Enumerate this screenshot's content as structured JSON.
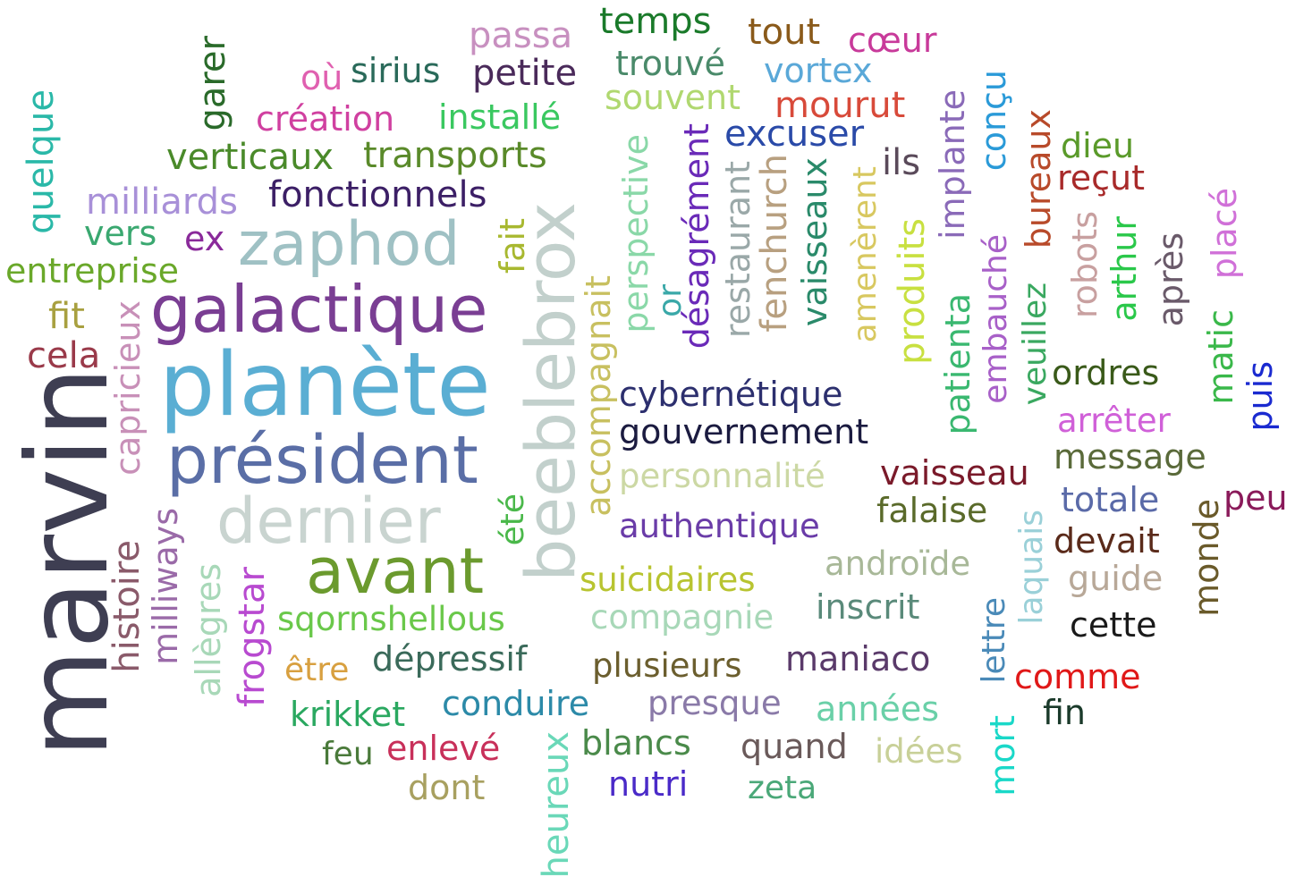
{
  "words": [
    {
      "text": "marvin",
      "color": "#3e3e52"
    },
    {
      "text": "planète",
      "color": "#5aaed3"
    },
    {
      "text": "beeblebrox",
      "color": "#c2d0cc"
    },
    {
      "text": "président",
      "color": "#5a6ea6"
    },
    {
      "text": "galactique",
      "color": "#7a3e93"
    },
    {
      "text": "dernier",
      "color": "#c9d4d0"
    },
    {
      "text": "avant",
      "color": "#6b9a2e"
    },
    {
      "text": "zaphod",
      "color": "#9fc1c4"
    },
    {
      "text": "fonctionnels",
      "color": "#3c1f66"
    },
    {
      "text": "cybernétique",
      "color": "#2c2f6e"
    },
    {
      "text": "gouvernement",
      "color": "#1b1b40"
    },
    {
      "text": "personnalité",
      "color": "#ccd8a4"
    },
    {
      "text": "authentique",
      "color": "#6a3ca8"
    },
    {
      "text": "suicidaires",
      "color": "#b8c430"
    },
    {
      "text": "compagnie",
      "color": "#a8d8b8"
    },
    {
      "text": "plusieurs",
      "color": "#6b5e2e"
    },
    {
      "text": "presque",
      "color": "#8a7aa8"
    },
    {
      "text": "sqornshellous",
      "color": "#6ac84a"
    },
    {
      "text": "dépressif",
      "color": "#3a6a5a"
    },
    {
      "text": "conduire",
      "color": "#2c8aa8"
    },
    {
      "text": "krikket",
      "color": "#2aa860"
    },
    {
      "text": "être",
      "color": "#d8a040"
    },
    {
      "text": "feu",
      "color": "#4a7a3a"
    },
    {
      "text": "enlevé",
      "color": "#c8305a"
    },
    {
      "text": "dont",
      "color": "#a8a060"
    },
    {
      "text": "blancs",
      "color": "#4a8a4a"
    },
    {
      "text": "nutri",
      "color": "#4a2ac8"
    },
    {
      "text": "quand",
      "color": "#6a5a5a"
    },
    {
      "text": "zeta",
      "color": "#4aa878"
    },
    {
      "text": "idées",
      "color": "#c8d098"
    },
    {
      "text": "années",
      "color": "#6ad0a8"
    },
    {
      "text": "maniaco",
      "color": "#5a3a6a"
    },
    {
      "text": "inscrit",
      "color": "#5a8a7a"
    },
    {
      "text": "androïde",
      "color": "#a8b898"
    },
    {
      "text": "falaise",
      "color": "#5a6a2a"
    },
    {
      "text": "vaisseau",
      "color": "#7a1a2a"
    },
    {
      "text": "message",
      "color": "#5a6a3a"
    },
    {
      "text": "arrêter",
      "color": "#d060d8"
    },
    {
      "text": "ordres",
      "color": "#3a5a1a"
    },
    {
      "text": "totale",
      "color": "#5a6aa8"
    },
    {
      "text": "devait",
      "color": "#5a2a1a"
    },
    {
      "text": "guide",
      "color": "#b8a898"
    },
    {
      "text": "cette",
      "color": "#1a1a1a"
    },
    {
      "text": "comme",
      "color": "#e01818"
    },
    {
      "text": "fin",
      "color": "#1a3a2a"
    },
    {
      "text": "peu",
      "color": "#8a1a5a"
    },
    {
      "text": "temps",
      "color": "#1a7a2a"
    },
    {
      "text": "tout",
      "color": "#8a5a1a"
    },
    {
      "text": "cœur",
      "color": "#c83a9a"
    },
    {
      "text": "passa",
      "color": "#c890c0"
    },
    {
      "text": "trouvé",
      "color": "#4a8a6a"
    },
    {
      "text": "vortex",
      "color": "#5aa8d8"
    },
    {
      "text": "où",
      "color": "#e060b0"
    },
    {
      "text": "sirius",
      "color": "#2a6a5a"
    },
    {
      "text": "petite",
      "color": "#4a2a5a"
    },
    {
      "text": "souvent",
      "color": "#b0d870"
    },
    {
      "text": "mourut",
      "color": "#d84a3a"
    },
    {
      "text": "création",
      "color": "#d040a0"
    },
    {
      "text": "installé",
      "color": "#3ac860"
    },
    {
      "text": "excuser",
      "color": "#2a4aa8"
    },
    {
      "text": "verticaux",
      "color": "#4a8a2a"
    },
    {
      "text": "transports",
      "color": "#5a8a2a"
    },
    {
      "text": "ils",
      "color": "#5a4a5a"
    },
    {
      "text": "dieu",
      "color": "#5a9a2a"
    },
    {
      "text": "reçut",
      "color": "#a82a2a"
    },
    {
      "text": "milliards",
      "color": "#a890d8"
    },
    {
      "text": "vers",
      "color": "#3aa870"
    },
    {
      "text": "ex",
      "color": "#8a2a9a"
    },
    {
      "text": "entreprise",
      "color": "#6aa82a"
    },
    {
      "text": "fit",
      "color": "#a8a040"
    },
    {
      "text": "cela",
      "color": "#9a3a4a"
    },
    {
      "text": "quelque",
      "color": "#2ab8a8"
    },
    {
      "text": "garer",
      "color": "#2a6a2a"
    },
    {
      "text": "capricieux",
      "color": "#c890b8"
    },
    {
      "text": "histoire",
      "color": "#8a5a6a"
    },
    {
      "text": "milliways",
      "color": "#9a6aa8"
    },
    {
      "text": "allègres",
      "color": "#a8d8b8"
    },
    {
      "text": "frogstar",
      "color": "#b84ad0"
    },
    {
      "text": "été",
      "color": "#4ab84a"
    },
    {
      "text": "fait",
      "color": "#a8b830"
    },
    {
      "text": "accompagnait",
      "color": "#c8c060"
    },
    {
      "text": "heureux",
      "color": "#6ad8b8"
    },
    {
      "text": "perspective",
      "color": "#8ad8a8"
    },
    {
      "text": "or",
      "color": "#3aa8a8"
    },
    {
      "text": "désagrément",
      "color": "#6a2ab8"
    },
    {
      "text": "restaurant",
      "color": "#9aa8a8"
    },
    {
      "text": "fenchurch",
      "color": "#b8a080"
    },
    {
      "text": "vaisseaux",
      "color": "#2a8a6a"
    },
    {
      "text": "amenèrent",
      "color": "#d8c860"
    },
    {
      "text": "produits",
      "color": "#c8e040"
    },
    {
      "text": "implante",
      "color": "#8a6ab8"
    },
    {
      "text": "patienta",
      "color": "#3ab870"
    },
    {
      "text": "conçu",
      "color": "#2a9ad8"
    },
    {
      "text": "embauché",
      "color": "#a860c8"
    },
    {
      "text": "bureaux",
      "color": "#b84a2a"
    },
    {
      "text": "veuillez",
      "color": "#3aa860"
    },
    {
      "text": "laquais",
      "color": "#9ad0d8"
    },
    {
      "text": "lettre",
      "color": "#4a8ab8"
    },
    {
      "text": "mort",
      "color": "#1ad8c8"
    },
    {
      "text": "robots",
      "color": "#c8a0a0"
    },
    {
      "text": "arthur",
      "color": "#2ac84a"
    },
    {
      "text": "après",
      "color": "#6a5a6a"
    },
    {
      "text": "matic",
      "color": "#3ab84a"
    },
    {
      "text": "placé",
      "color": "#d070d8"
    },
    {
      "text": "puis",
      "color": "#1a2ad0"
    },
    {
      "text": "monde",
      "color": "#6a5a2a"
    }
  ]
}
